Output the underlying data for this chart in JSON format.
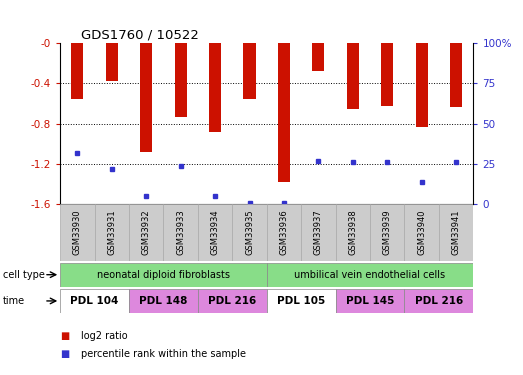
{
  "title": "GDS1760 / 10522",
  "samples": [
    "GSM33930",
    "GSM33931",
    "GSM33932",
    "GSM33933",
    "GSM33934",
    "GSM33935",
    "GSM33936",
    "GSM33937",
    "GSM33938",
    "GSM33939",
    "GSM33940",
    "GSM33941"
  ],
  "log2_ratio": [
    -0.55,
    -0.38,
    -1.08,
    -0.73,
    -0.88,
    -0.55,
    -1.38,
    -0.28,
    -0.65,
    -0.62,
    -0.83,
    -0.63
  ],
  "percentile_rank": [
    32,
    22,
    5,
    24,
    5,
    1,
    1,
    27,
    26,
    26,
    14,
    26
  ],
  "ylim_left": [
    -1.6,
    0.0
  ],
  "ylim_right": [
    0,
    100
  ],
  "left_ticks": [
    -1.6,
    -1.2,
    -0.8,
    -0.4,
    0.0
  ],
  "right_ticks": [
    0,
    25,
    50,
    75,
    100
  ],
  "bar_color": "#cc1100",
  "dot_color": "#3333cc",
  "grid_color": "#000000",
  "cell_type_groups": [
    {
      "label": "neonatal diploid fibroblasts",
      "start": 0,
      "end": 6,
      "color": "#88dd88"
    },
    {
      "label": "umbilical vein endothelial cells",
      "start": 6,
      "end": 12,
      "color": "#88dd88"
    }
  ],
  "time_groups": [
    {
      "label": "PDL 104",
      "start": 0,
      "end": 2,
      "color": "#ffffff"
    },
    {
      "label": "PDL 148",
      "start": 2,
      "end": 4,
      "color": "#dd88dd"
    },
    {
      "label": "PDL 216",
      "start": 4,
      "end": 6,
      "color": "#dd88dd"
    },
    {
      "label": "PDL 105",
      "start": 6,
      "end": 8,
      "color": "#ffffff"
    },
    {
      "label": "PDL 145",
      "start": 8,
      "end": 10,
      "color": "#dd88dd"
    },
    {
      "label": "PDL 216",
      "start": 10,
      "end": 12,
      "color": "#dd88dd"
    }
  ],
  "legend_items": [
    {
      "label": "log2 ratio",
      "color": "#cc1100"
    },
    {
      "label": "percentile rank within the sample",
      "color": "#3333cc"
    }
  ],
  "bar_width": 0.35,
  "bg_color": "#ffffff",
  "axes_label_color_left": "#cc1100",
  "axes_label_color_right": "#3333cc",
  "sample_bg": "#cccccc"
}
